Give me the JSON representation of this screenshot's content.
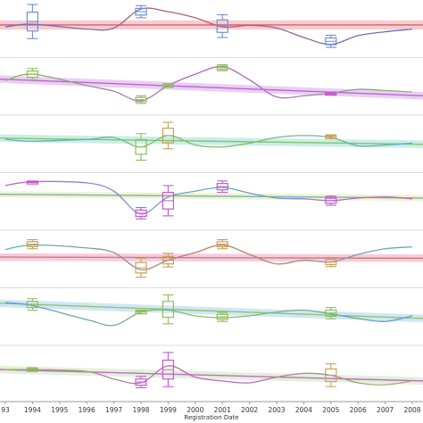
{
  "chart_data": {
    "type": "line",
    "xlabel": "Registration Date",
    "x_ticks": [
      "93",
      "1994",
      "1995",
      "1996",
      "1997",
      "1998",
      "1999",
      "2000",
      "2001",
      "2002",
      "2003",
      "2004",
      "2005",
      "2006",
      "2007",
      "2008"
    ],
    "grid": false,
    "legend": "none",
    "panels": [
      {
        "name": "",
        "band_color": "#f4a0a8",
        "line_colors": [
          "#5a76c6",
          "#c45a66"
        ],
        "ylim": [
          0,
          1
        ],
        "trend": [
          0.53,
          0.53
        ],
        "band_halfwidth": 0.12,
        "curve": [
          {
            "year": 1993,
            "value": 0.48
          },
          {
            "year": 1994,
            "value": 0.55
          },
          {
            "year": 1996,
            "value": 0.42
          },
          {
            "year": 1997,
            "value": 0.45
          },
          {
            "year": 1998,
            "value": 0.95
          },
          {
            "year": 1999,
            "value": 0.88
          },
          {
            "year": 2000,
            "value": 0.72
          },
          {
            "year": 2001,
            "value": 0.48
          },
          {
            "year": 2002,
            "value": 0.52
          },
          {
            "year": 2003,
            "value": 0.45
          },
          {
            "year": 2004,
            "value": 0.2
          },
          {
            "year": 2005,
            "value": 0.02
          },
          {
            "year": 2006,
            "value": 0.25
          },
          {
            "year": 2007,
            "value": 0.35
          },
          {
            "year": 2008,
            "value": 0.42
          }
        ],
        "boxes": [
          {
            "year": 1994,
            "mid": 0.62,
            "half": 0.45,
            "color": "#6f8fd6"
          },
          {
            "year": 1998,
            "mid": 0.88,
            "half": 0.16,
            "color": "#6f8fd6"
          },
          {
            "year": 2001,
            "mid": 0.5,
            "half": 0.3,
            "color": "#6f8fd6"
          },
          {
            "year": 2005,
            "mid": 0.1,
            "half": 0.16,
            "color": "#6f8fd6"
          }
        ]
      },
      {
        "name": "",
        "band_color": "#d9a8e8",
        "line_colors": [
          "#7fbf5a",
          "#b45ad0"
        ],
        "ylim": [
          0,
          1
        ],
        "trend": [
          0.62,
          0.18
        ],
        "band_halfwidth": 0.1,
        "curve": [
          {
            "year": 1993,
            "value": 0.58
          },
          {
            "year": 1994,
            "value": 0.75
          },
          {
            "year": 1996,
            "value": 0.45
          },
          {
            "year": 1997,
            "value": 0.3
          },
          {
            "year": 1998,
            "value": 0.05
          },
          {
            "year": 1999,
            "value": 0.45
          },
          {
            "year": 2000,
            "value": 0.75
          },
          {
            "year": 2001,
            "value": 0.95
          },
          {
            "year": 2002,
            "value": 0.6
          },
          {
            "year": 2003,
            "value": 0.15
          },
          {
            "year": 2004,
            "value": 0.18
          },
          {
            "year": 2005,
            "value": 0.25
          },
          {
            "year": 2006,
            "value": 0.35
          },
          {
            "year": 2007,
            "value": 0.32
          },
          {
            "year": 2008,
            "value": 0.28
          }
        ],
        "boxes": [
          {
            "year": 1994,
            "mid": 0.75,
            "half": 0.15,
            "color": "#8fbf5a"
          },
          {
            "year": 1998,
            "mid": 0.08,
            "half": 0.1,
            "color": "#8fbf5a"
          },
          {
            "year": 1999,
            "mid": 0.45,
            "half": 0.05,
            "color": "#8fbf5a"
          },
          {
            "year": 2001,
            "mid": 0.92,
            "half": 0.08,
            "color": "#8fbf5a"
          },
          {
            "year": 2005,
            "mid": 0.25,
            "half": 0.03,
            "color": "#c45ad0"
          }
        ]
      },
      {
        "name": "",
        "band_color": "#9fe0d8",
        "line_colors": [
          "#5ab0c8",
          "#7fbf5a"
        ],
        "ylim": [
          0,
          1
        ],
        "trend": [
          0.58,
          0.42
        ],
        "band_halfwidth": 0.1,
        "curve": [
          {
            "year": 1993,
            "value": 0.55
          },
          {
            "year": 1994,
            "value": 0.5
          },
          {
            "year": 1996,
            "value": 0.55
          },
          {
            "year": 1997,
            "value": 0.6
          },
          {
            "year": 1998,
            "value": 0.35
          },
          {
            "year": 1999,
            "value": 0.65
          },
          {
            "year": 2000,
            "value": 0.4
          },
          {
            "year": 2001,
            "value": 0.35
          },
          {
            "year": 2002,
            "value": 0.45
          },
          {
            "year": 2003,
            "value": 0.6
          },
          {
            "year": 2004,
            "value": 0.65
          },
          {
            "year": 2005,
            "value": 0.6
          },
          {
            "year": 2006,
            "value": 0.38
          },
          {
            "year": 2007,
            "value": 0.4
          },
          {
            "year": 2008,
            "value": 0.45
          }
        ],
        "boxes": [
          {
            "year": 1998,
            "mid": 0.35,
            "half": 0.35,
            "color": "#8fbf5a"
          },
          {
            "year": 1999,
            "mid": 0.65,
            "half": 0.35,
            "color": "#c8a05a"
          },
          {
            "year": 2005,
            "mid": 0.62,
            "half": 0.05,
            "color": "#c8a05a"
          }
        ]
      },
      {
        "name": "",
        "band_color": "#ece6a0",
        "line_colors": [
          "#c45ad0",
          "#5ab0c8"
        ],
        "ylim": [
          0,
          1
        ],
        "trend": [
          0.62,
          0.52
        ],
        "band_halfwidth": 0.08,
        "curve": [
          {
            "year": 1993,
            "value": 0.85
          },
          {
            "year": 1994,
            "value": 0.95
          },
          {
            "year": 1996,
            "value": 0.92
          },
          {
            "year": 1997,
            "value": 0.7
          },
          {
            "year": 1998,
            "value": 0.1
          },
          {
            "year": 1999,
            "value": 0.55
          },
          {
            "year": 2000,
            "value": 0.7
          },
          {
            "year": 2001,
            "value": 0.8
          },
          {
            "year": 2002,
            "value": 0.65
          },
          {
            "year": 2003,
            "value": 0.52
          },
          {
            "year": 2004,
            "value": 0.5
          },
          {
            "year": 2005,
            "value": 0.45
          },
          {
            "year": 2006,
            "value": 0.52
          },
          {
            "year": 2007,
            "value": 0.55
          },
          {
            "year": 2008,
            "value": 0.5
          }
        ],
        "boxes": [
          {
            "year": 1994,
            "mid": 0.95,
            "half": 0.02,
            "color": "#c45ad0"
          },
          {
            "year": 1998,
            "mid": 0.12,
            "half": 0.15,
            "color": "#c45ad0"
          },
          {
            "year": 1999,
            "mid": 0.45,
            "half": 0.4,
            "color": "#c45ad0"
          },
          {
            "year": 2001,
            "mid": 0.82,
            "half": 0.15,
            "color": "#c45ad0"
          },
          {
            "year": 2005,
            "mid": 0.45,
            "half": 0.12,
            "color": "#c45ad0"
          }
        ]
      },
      {
        "name": "",
        "band_color": "#f0a0c8",
        "line_colors": [
          "#5ab0c8",
          "#c87a5a"
        ],
        "ylim": [
          0,
          1
        ],
        "trend": [
          0.48,
          0.45
        ],
        "band_halfwidth": 0.1,
        "curve": [
          {
            "year": 1993,
            "value": 0.68
          },
          {
            "year": 1994,
            "value": 0.8
          },
          {
            "year": 1996,
            "value": 0.72
          },
          {
            "year": 1997,
            "value": 0.6
          },
          {
            "year": 1998,
            "value": 0.15
          },
          {
            "year": 1999,
            "value": 0.4
          },
          {
            "year": 2000,
            "value": 0.6
          },
          {
            "year": 2001,
            "value": 0.8
          },
          {
            "year": 2002,
            "value": 0.55
          },
          {
            "year": 2003,
            "value": 0.3
          },
          {
            "year": 2004,
            "value": 0.4
          },
          {
            "year": 2005,
            "value": 0.35
          },
          {
            "year": 2006,
            "value": 0.55
          },
          {
            "year": 2007,
            "value": 0.7
          },
          {
            "year": 2008,
            "value": 0.75
          }
        ],
        "boxes": [
          {
            "year": 1994,
            "mid": 0.82,
            "half": 0.12,
            "color": "#c8a05a"
          },
          {
            "year": 1998,
            "mid": 0.2,
            "half": 0.25,
            "color": "#c8a05a"
          },
          {
            "year": 1999,
            "mid": 0.4,
            "half": 0.18,
            "color": "#c8a05a"
          },
          {
            "year": 2001,
            "mid": 0.82,
            "half": 0.12,
            "color": "#c8a05a"
          },
          {
            "year": 2005,
            "mid": 0.35,
            "half": 0.12,
            "color": "#c8a05a"
          }
        ]
      },
      {
        "name": "",
        "band_color": "#a8d4f0",
        "line_colors": [
          "#5a9ad0",
          "#8fbf5a"
        ],
        "ylim": [
          0,
          1
        ],
        "trend": [
          0.78,
          0.38
        ],
        "band_halfwidth": 0.1,
        "curve": [
          {
            "year": 1993,
            "value": 0.8
          },
          {
            "year": 1994,
            "value": 0.72
          },
          {
            "year": 1996,
            "value": 0.35
          },
          {
            "year": 1997,
            "value": 0.2
          },
          {
            "year": 1998,
            "value": 0.55
          },
          {
            "year": 1999,
            "value": 0.6
          },
          {
            "year": 2000,
            "value": 0.45
          },
          {
            "year": 2001,
            "value": 0.4
          },
          {
            "year": 2002,
            "value": 0.45
          },
          {
            "year": 2003,
            "value": 0.55
          },
          {
            "year": 2004,
            "value": 0.6
          },
          {
            "year": 2005,
            "value": 0.5
          },
          {
            "year": 2006,
            "value": 0.38
          },
          {
            "year": 2007,
            "value": 0.3
          },
          {
            "year": 2008,
            "value": 0.45
          }
        ],
        "boxes": [
          {
            "year": 1994,
            "mid": 0.75,
            "half": 0.15,
            "color": "#8fbf5a"
          },
          {
            "year": 1998,
            "mid": 0.55,
            "half": 0.05,
            "color": "#8fbf5a"
          },
          {
            "year": 1999,
            "mid": 0.62,
            "half": 0.38,
            "color": "#8fbf5a"
          },
          {
            "year": 2001,
            "mid": 0.42,
            "half": 0.12,
            "color": "#8fbf5a"
          },
          {
            "year": 2005,
            "mid": 0.52,
            "half": 0.15,
            "color": "#8fbf5a"
          }
        ]
      },
      {
        "name": "",
        "band_color": "#c8e8b8",
        "line_colors": [
          "#8fbf5a",
          "#c45ad0"
        ],
        "ylim": [
          0,
          1
        ],
        "trend": [
          0.55,
          0.25
        ],
        "band_halfwidth": 0.1,
        "curve": [
          {
            "year": 1993,
            "value": 0.55
          },
          {
            "year": 1994,
            "value": 0.55
          },
          {
            "year": 1996,
            "value": 0.5
          },
          {
            "year": 1997,
            "value": 0.3
          },
          {
            "year": 1998,
            "value": 0.2
          },
          {
            "year": 1999,
            "value": 0.65
          },
          {
            "year": 2000,
            "value": 0.35
          },
          {
            "year": 2001,
            "value": 0.25
          },
          {
            "year": 2002,
            "value": 0.2
          },
          {
            "year": 2003,
            "value": 0.35
          },
          {
            "year": 2004,
            "value": 0.45
          },
          {
            "year": 2005,
            "value": 0.4
          },
          {
            "year": 2006,
            "value": 0.2
          },
          {
            "year": 2007,
            "value": 0.15
          },
          {
            "year": 2008,
            "value": 0.25
          }
        ],
        "boxes": [
          {
            "year": 1994,
            "mid": 0.55,
            "half": 0.05,
            "color": "#8fbf5a"
          },
          {
            "year": 1998,
            "mid": 0.22,
            "half": 0.15,
            "color": "#c45ad0"
          },
          {
            "year": 1999,
            "mid": 0.55,
            "half": 0.45,
            "color": "#c45ad0"
          },
          {
            "year": 2005,
            "mid": 0.4,
            "half": 0.3,
            "color": "#c8a05a"
          }
        ]
      }
    ]
  }
}
